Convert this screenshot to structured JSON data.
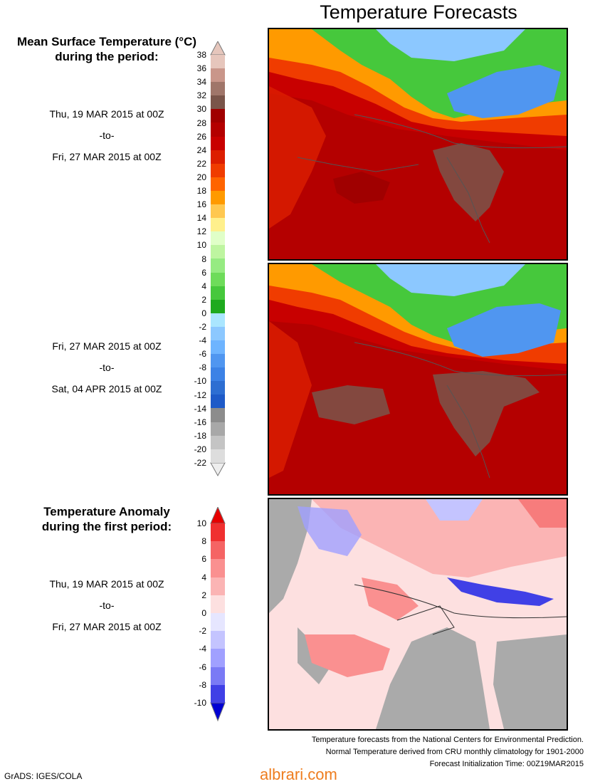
{
  "title": "Temperature Forecasts",
  "mean_legend": {
    "heading_line1": "Mean Surface Temperature (°C)",
    "heading_line2": "during the period:",
    "ticks": [
      "38",
      "36",
      "34",
      "32",
      "30",
      "28",
      "26",
      "24",
      "22",
      "20",
      "18",
      "16",
      "14",
      "12",
      "10",
      "8",
      "6",
      "4",
      "2",
      "0",
      "-2",
      "-4",
      "-6",
      "-8",
      "-10",
      "-12",
      "-14",
      "-16",
      "-18",
      "-20",
      "-22"
    ],
    "colors": [
      "#e6c6bc",
      "#c9968a",
      "#a0766a",
      "#7a554a",
      "#a00000",
      "#b40000",
      "#c80000",
      "#dc1e00",
      "#f03c00",
      "#ff6400",
      "#ff9a00",
      "#ffc850",
      "#fff08c",
      "#e0ffc8",
      "#bef5a0",
      "#96eb82",
      "#6edc5a",
      "#46c83c",
      "#1eaa1e",
      "#aae6ff",
      "#8cc8ff",
      "#6eb4ff",
      "#5096f0",
      "#3c82e6",
      "#2d6ed2",
      "#1e5ac8",
      "#8c8c8c",
      "#a8a8a8",
      "#c4c4c4",
      "#dddddd"
    ]
  },
  "period1": {
    "start": "Thu, 19 MAR 2015 at 00Z",
    "sep": "-to-",
    "end": "Fri, 27 MAR 2015 at 00Z"
  },
  "period2": {
    "start": "Fri, 27 MAR 2015 at 00Z",
    "sep": "-to-",
    "end": "Sat, 04 APR 2015 at 00Z"
  },
  "anomaly_legend": {
    "heading_line1": "Temperature Anomaly",
    "heading_line2": "during the first period:",
    "ticks": [
      "10",
      "8",
      "6",
      "4",
      "2",
      "0",
      "-2",
      "-4",
      "-6",
      "-8",
      "-10"
    ],
    "colors": [
      "#f03030",
      "#f56464",
      "#fa9090",
      "#fbb4b4",
      "#fde0e0",
      "#e6e6ff",
      "#c4c4ff",
      "#a0a0ff",
      "#7a7af5",
      "#4040e6"
    ]
  },
  "period3": {
    "start": "Thu, 19 MAR 2015 at 00Z",
    "sep": "-to-",
    "end": "Fri, 27 MAR 2015 at 00Z"
  },
  "footer": {
    "line1": "Temperature forecasts from the National Centers for Environmental Prediction.",
    "line2": "Normal Temperature derived from CRU monthly climatology for 1901-2000",
    "line3": "Forecast Initialization Time: 00Z19MAR2015"
  },
  "credit": "GrADS: IGES/COLA",
  "watermark": "albrari.com"
}
